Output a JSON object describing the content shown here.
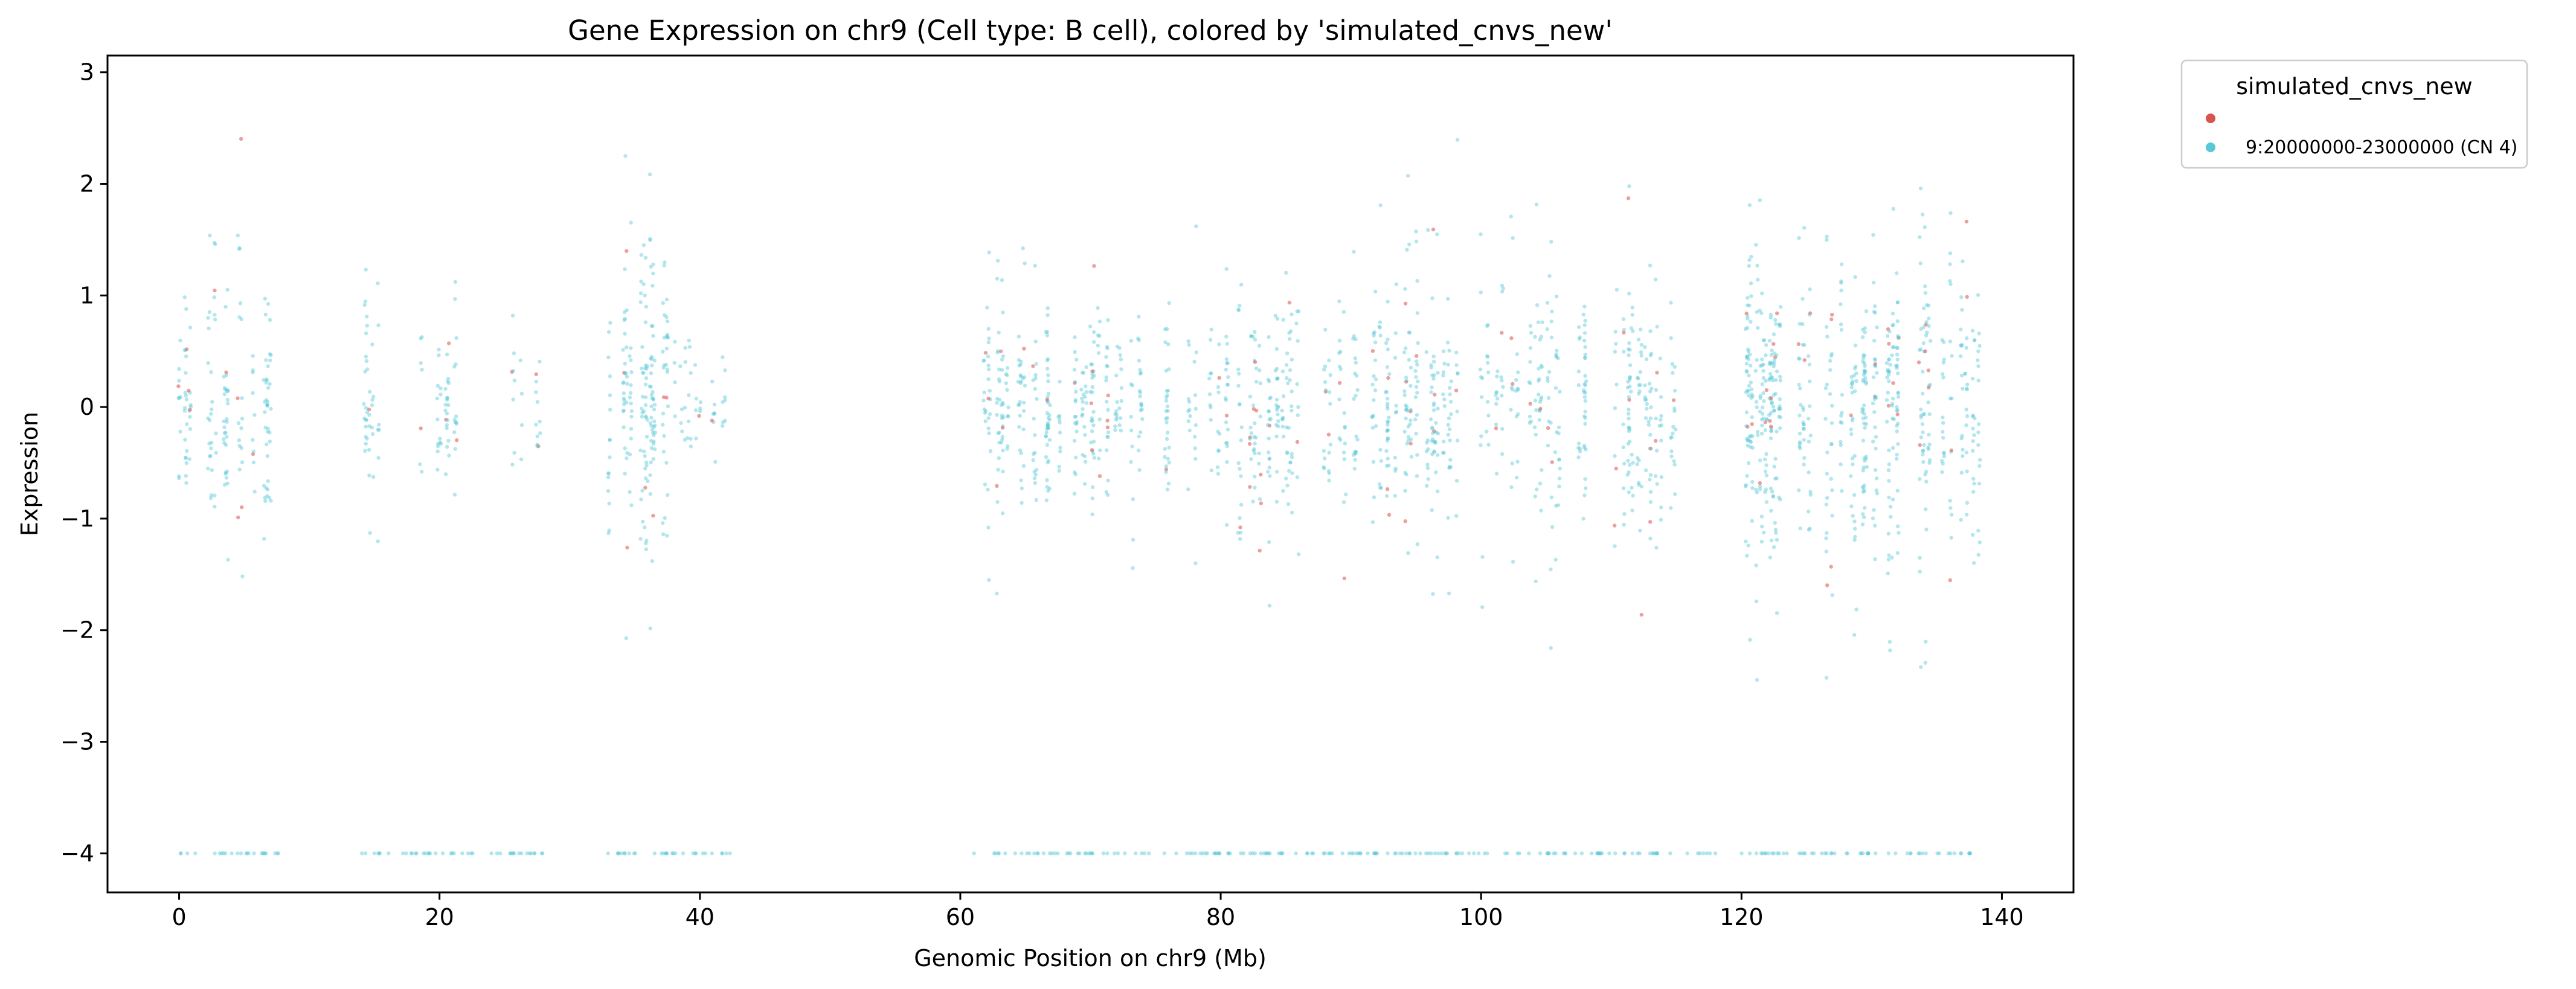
{
  "chart_data": {
    "type": "scatter",
    "title": "Gene Expression on chr9 (Cell type: B cell), colored by 'simulated_cnvs_new'",
    "xlabel": "Genomic Position on chr9 (Mb)",
    "ylabel": "Expression",
    "xlim": [
      -5.5,
      145.5
    ],
    "ylim": [
      -4.35,
      3.15
    ],
    "x_ticks": [
      0,
      20,
      40,
      60,
      80,
      100,
      120,
      140
    ],
    "y_ticks": [
      3,
      2,
      1,
      0,
      -1,
      -2,
      -3,
      -4
    ],
    "y_tick_labels": [
      "3",
      "2",
      "1",
      "0",
      "−1",
      "−2",
      "−3",
      "−4"
    ],
    "grid": false,
    "legend": {
      "title": "simulated_cnvs_new",
      "placement": "outside-top-right",
      "entries": [
        {
          "label": "",
          "color": "#d9534f"
        },
        {
          "label": "9:20000000-23000000 (CN 4)",
          "color": "#56c8d8"
        }
      ]
    },
    "series": [
      {
        "label_index": 1,
        "color": "#56c8d8",
        "description_of_distribution": "dense vertical strips of points per gene locus",
        "gene_clusters": [
          {
            "x": [
              0.0,
              7.5
            ],
            "y_center": 0.0,
            "y_spread": 1.3,
            "density": "high"
          },
          {
            "x": [
              13.5,
              16.0
            ],
            "y_center": 0.0,
            "y_spread": 1.0,
            "density": "medium"
          },
          {
            "x": [
              18.5,
              22.0
            ],
            "y_center": 0.0,
            "y_spread": 1.0,
            "density": "medium"
          },
          {
            "x": [
              25.5,
              28.0
            ],
            "y_center": 0.0,
            "y_spread": 0.9,
            "density": "low"
          },
          {
            "x": [
              32.5,
              38.0
            ],
            "y_center": 0.0,
            "y_spread": 1.6,
            "density": "very-high"
          },
          {
            "x": [
              38.0,
              43.0
            ],
            "y_center": 0.0,
            "y_spread": 0.6,
            "density": "low"
          },
          {
            "x": [
              61.0,
              78.0
            ],
            "y_center": 0.0,
            "y_spread": 1.1,
            "density": "high"
          },
          {
            "x": [
              78.0,
              95.0
            ],
            "y_center": 0.0,
            "y_spread": 1.3,
            "density": "high"
          },
          {
            "x": [
              95.0,
              115.0
            ],
            "y_center": 0.0,
            "y_spread": 1.3,
            "density": "high"
          },
          {
            "x": [
              120.0,
              138.5
            ],
            "y_center": 0.0,
            "y_spread": 1.6,
            "density": "very-high"
          }
        ],
        "zero_expression_strip_y": -4.0,
        "zero_expression_x_segments": [
          [
            0,
            8
          ],
          [
            13.5,
            28
          ],
          [
            32.5,
            42.5
          ],
          [
            61,
            118
          ],
          [
            120,
            138.5
          ]
        ]
      },
      {
        "label_index": 0,
        "color": "#d9534f",
        "description_of_distribution": "sparse points overlapping cyan strips",
        "share_of_points": 0.06
      }
    ]
  }
}
